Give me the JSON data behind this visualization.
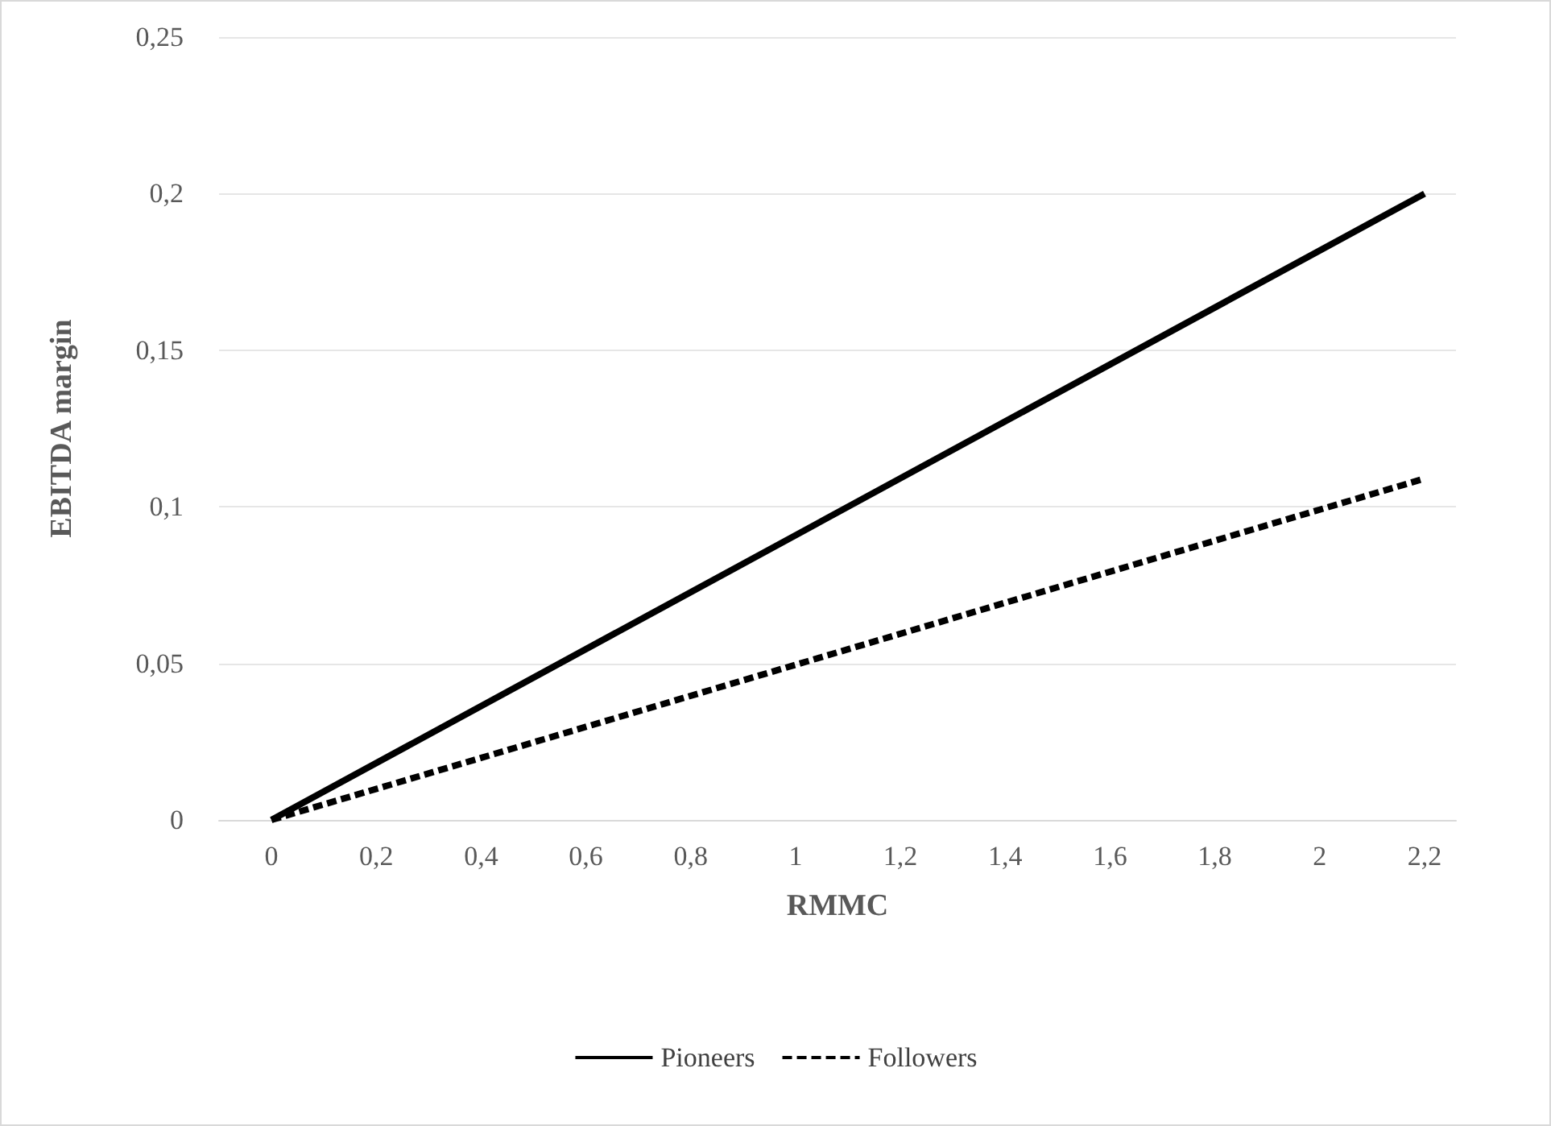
{
  "chart_data": {
    "type": "line",
    "xlabel": "RMMC",
    "ylabel": "EBITDA margin",
    "series": [
      {
        "name": "Pioneers",
        "color": "#000000",
        "values": [
          0,
          0.2
        ],
        "line_style": "solid"
      },
      {
        "name": "Followers",
        "color": "#000000",
        "values": [
          0,
          0.109
        ],
        "line_style": "dashed"
      }
    ],
    "x": [
      0,
      2.2
    ],
    "xlim": [
      -0.1,
      2.26
    ],
    "xticks": [
      0,
      {
        "value": 0.2,
        "label": "0,2"
      },
      {
        "value": 0.4,
        "label": "0,4"
      },
      {
        "value": 0.6,
        "label": "0,6"
      },
      {
        "value": 0.8,
        "label": "0,8"
      },
      1,
      {
        "value": 1.2,
        "label": "1,2"
      },
      {
        "value": 1.4,
        "label": "1,4"
      },
      {
        "value": 1.6,
        "label": "1,6"
      },
      {
        "value": 1.8,
        "label": "1,8"
      },
      2,
      {
        "value": 2.2,
        "label": "2,2"
      }
    ],
    "ylim": [
      0,
      0.25
    ],
    "yticks": [
      0,
      {
        "value": 0.05,
        "label": "0,05"
      },
      {
        "value": 0.1,
        "label": "0,1"
      },
      {
        "value": 0.15,
        "label": "0,15"
      },
      {
        "value": 0.2,
        "label": "0,2"
      },
      {
        "value": 0.25,
        "label": "0,25"
      }
    ],
    "grid": "y",
    "legend": "bottom",
    "marker": "none"
  }
}
